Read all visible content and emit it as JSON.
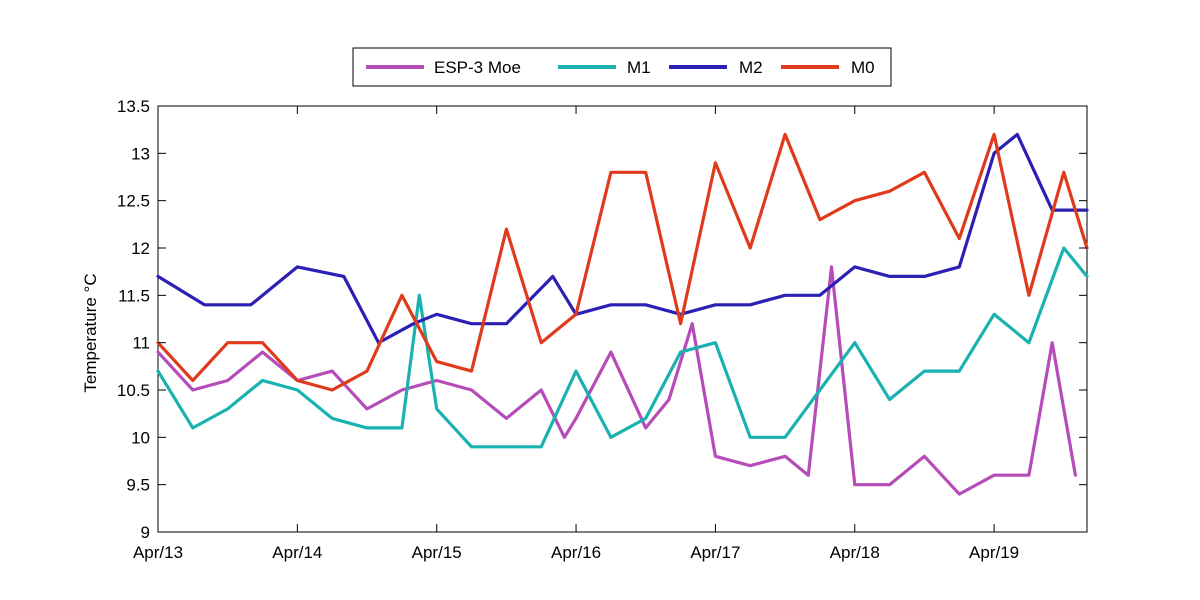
{
  "chart_data": {
    "type": "line",
    "title": "",
    "xlabel": "",
    "ylabel": "Temperature °C",
    "xlim": [
      "2013-04-13",
      "2013-04-19 16:00"
    ],
    "ylim": [
      9,
      13.5
    ],
    "x_ticks": [
      "Apr/13",
      "Apr/14",
      "Apr/15",
      "Apr/16",
      "Apr/17",
      "Apr/18",
      "Apr/19"
    ],
    "y_ticks": [
      "9",
      "9.5",
      "10",
      "10.5",
      "11",
      "11.5",
      "12",
      "12.5",
      "13",
      "13.5"
    ],
    "legend_position": "top-center",
    "grid": false,
    "series": [
      {
        "name": "ESP-3 Moe",
        "color": "#b54cb8",
        "x": [
          "04-13 00:00",
          "04-13 06:00",
          "04-13 12:00",
          "04-13 18:00",
          "04-14 00:00",
          "04-14 06:00",
          "04-14 12:00",
          "04-14 18:00",
          "04-15 00:00",
          "04-15 06:00",
          "04-15 12:00",
          "04-15 18:00",
          "04-15 22:00",
          "04-16 00:00",
          "04-16 06:00",
          "04-16 12:00",
          "04-16 16:00",
          "04-16 20:00",
          "04-17 00:00",
          "04-17 06:00",
          "04-17 12:00",
          "04-17 16:00",
          "04-17 20:00",
          "04-18 00:00",
          "04-18 06:00",
          "04-18 12:00",
          "04-18 18:00",
          "04-19 00:00",
          "04-19 06:00",
          "04-19 10:00",
          "04-19 14:00"
        ],
        "y": [
          10.9,
          10.5,
          10.6,
          10.9,
          10.6,
          10.7,
          10.3,
          10.5,
          10.6,
          10.5,
          10.2,
          10.5,
          10.0,
          10.2,
          10.9,
          10.1,
          10.4,
          11.2,
          9.8,
          9.7,
          9.8,
          9.6,
          11.8,
          9.5,
          9.5,
          9.8,
          9.4,
          9.6,
          9.6,
          11.0,
          9.6
        ]
      },
      {
        "name": "M1",
        "color": "#19b2b0",
        "x": [
          "04-13 00:00",
          "04-13 06:00",
          "04-13 12:00",
          "04-13 18:00",
          "04-14 00:00",
          "04-14 06:00",
          "04-14 12:00",
          "04-14 18:00",
          "04-14 21:00",
          "04-15 00:00",
          "04-15 06:00",
          "04-15 12:00",
          "04-15 18:00",
          "04-16 00:00",
          "04-16 06:00",
          "04-16 12:00",
          "04-16 18:00",
          "04-17 00:00",
          "04-17 06:00",
          "04-17 12:00",
          "04-17 18:00",
          "04-18 00:00",
          "04-18 06:00",
          "04-18 12:00",
          "04-18 18:00",
          "04-19 00:00",
          "04-19 06:00",
          "04-19 12:00",
          "04-19 16:00"
        ],
        "y": [
          10.7,
          10.1,
          10.3,
          10.6,
          10.5,
          10.2,
          10.1,
          10.1,
          11.5,
          10.3,
          9.9,
          9.9,
          9.9,
          10.7,
          10.0,
          10.2,
          10.9,
          11.0,
          10.0,
          10.0,
          10.5,
          11.0,
          10.4,
          10.7,
          10.7,
          11.3,
          11.0,
          12.0,
          11.7
        ]
      },
      {
        "name": "M2",
        "color": "#2c1fb4",
        "x": [
          "04-13 00:00",
          "04-13 08:00",
          "04-13 16:00",
          "04-14 00:00",
          "04-14 08:00",
          "04-14 14:00",
          "04-14 20:00",
          "04-15 00:00",
          "04-15 06:00",
          "04-15 12:00",
          "04-15 20:00",
          "04-16 00:00",
          "04-16 06:00",
          "04-16 12:00",
          "04-16 18:00",
          "04-17 00:00",
          "04-17 06:00",
          "04-17 12:00",
          "04-17 18:00",
          "04-18 00:00",
          "04-18 06:00",
          "04-18 12:00",
          "04-18 18:00",
          "04-19 00:00",
          "04-19 04:00",
          "04-19 10:00",
          "04-19 16:00"
        ],
        "y": [
          11.7,
          11.4,
          11.4,
          11.8,
          11.7,
          11.0,
          11.2,
          11.3,
          11.2,
          11.2,
          11.7,
          11.3,
          11.4,
          11.4,
          11.3,
          11.4,
          11.4,
          11.5,
          11.5,
          11.8,
          11.7,
          11.7,
          11.8,
          13.0,
          13.2,
          12.4,
          12.4
        ]
      },
      {
        "name": "M0",
        "color": "#e03a1c",
        "x": [
          "04-13 00:00",
          "04-13 06:00",
          "04-13 12:00",
          "04-13 18:00",
          "04-14 00:00",
          "04-14 06:00",
          "04-14 12:00",
          "04-14 18:00",
          "04-15 00:00",
          "04-15 06:00",
          "04-15 12:00",
          "04-15 18:00",
          "04-16 00:00",
          "04-16 06:00",
          "04-16 12:00",
          "04-16 18:00",
          "04-17 00:00",
          "04-17 06:00",
          "04-17 12:00",
          "04-17 18:00",
          "04-18 00:00",
          "04-18 06:00",
          "04-18 12:00",
          "04-18 18:00",
          "04-19 00:00",
          "04-19 06:00",
          "04-19 12:00",
          "04-19 16:00"
        ],
        "y": [
          11.0,
          10.6,
          11.0,
          11.0,
          10.6,
          10.5,
          10.7,
          11.5,
          10.8,
          10.7,
          12.2,
          11.0,
          11.3,
          12.8,
          12.8,
          11.2,
          12.9,
          12.0,
          13.2,
          12.3,
          12.5,
          12.6,
          12.8,
          12.1,
          13.2,
          11.5,
          12.8,
          12.0
        ]
      }
    ]
  }
}
